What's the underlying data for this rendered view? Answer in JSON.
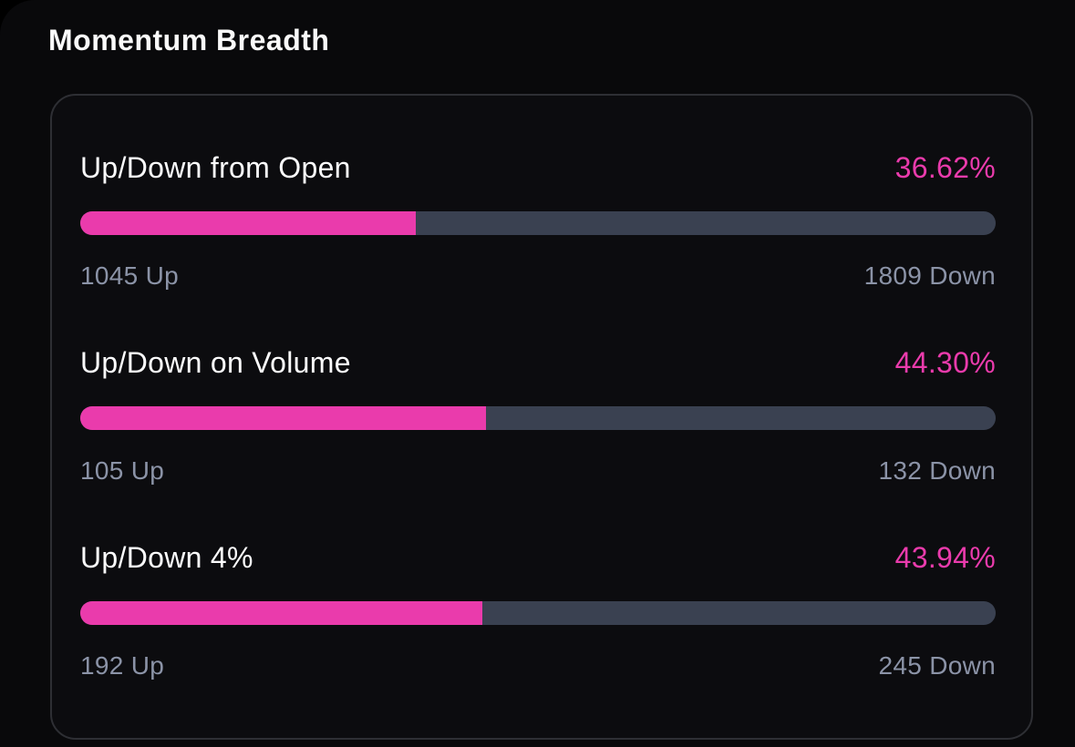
{
  "page_title": "Momentum Breadth",
  "colors": {
    "page_bg": "#09090b",
    "card_bg": "#0c0c0f",
    "card_border": "#2e2f34",
    "accent_pink": "#ea3bac",
    "track_slate": "#3a4151",
    "label_white": "#fcfcfd",
    "sublabel_gray": "#8b93a7"
  },
  "card": {
    "rows": [
      {
        "label": "Up/Down from Open",
        "percent_label": "36.62%",
        "percent_value": 36.62,
        "up_label": "1045 Up",
        "down_label": "1809 Down"
      },
      {
        "label": "Up/Down on Volume",
        "percent_label": "44.30%",
        "percent_value": 44.3,
        "up_label": "105 Up",
        "down_label": "132 Down"
      },
      {
        "label": "Up/Down 4%",
        "percent_label": "43.94%",
        "percent_value": 43.94,
        "up_label": "192 Up",
        "down_label": "245 Down"
      }
    ]
  }
}
